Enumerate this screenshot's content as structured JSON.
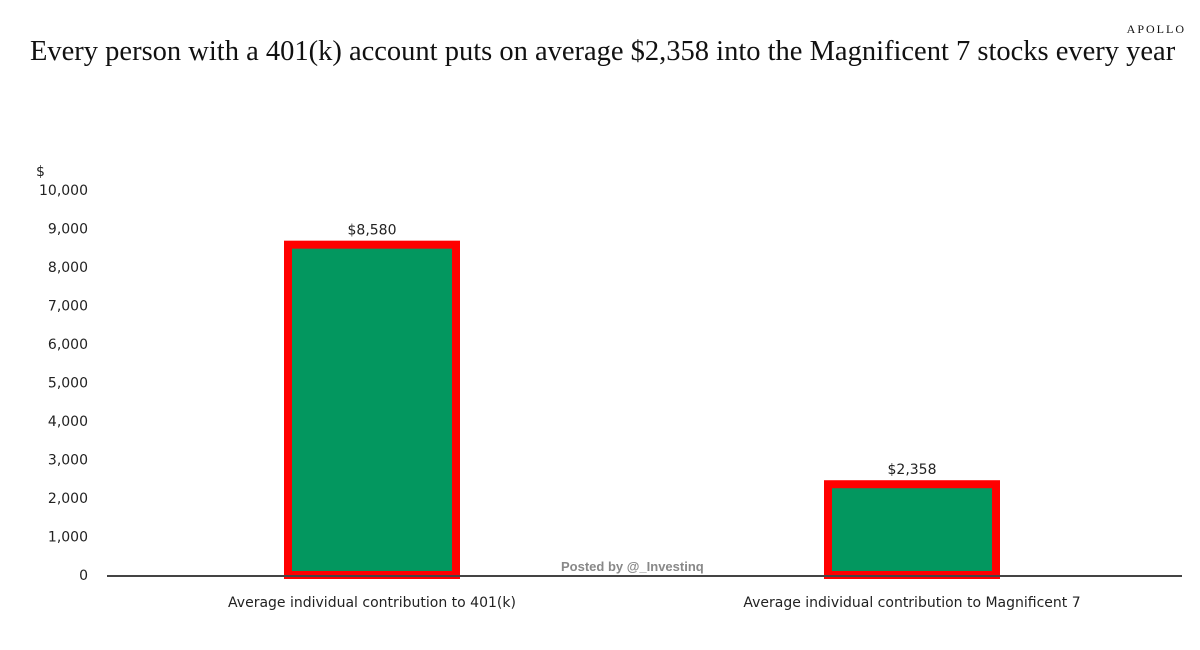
{
  "brand": "APOLLO",
  "watermark": "Posted by @_Investinq",
  "chart_data": {
    "type": "bar",
    "title": "Every person with a 401(k) account puts on average $2,358 into the Magnificent 7 stocks every year",
    "ylabel": "$",
    "xlabel": "",
    "ylim": [
      0,
      10000
    ],
    "yticks": [
      0,
      1000,
      2000,
      3000,
      4000,
      5000,
      6000,
      7000,
      8000,
      9000,
      10000
    ],
    "ytick_labels": [
      "0",
      "1,000",
      "2,000",
      "3,000",
      "4,000",
      "5,000",
      "6,000",
      "7,000",
      "8,000",
      "9,000",
      "10,000"
    ],
    "categories": [
      "Average individual contribution to 401(k)",
      "Average individual contribution to Magnificent 7"
    ],
    "values": [
      8580,
      2358
    ],
    "data_labels": [
      "$8,580",
      "$2,358"
    ],
    "grid": false,
    "colors": {
      "bar": "#03975f",
      "outline": "#ff0000",
      "axis": "#444444"
    }
  }
}
